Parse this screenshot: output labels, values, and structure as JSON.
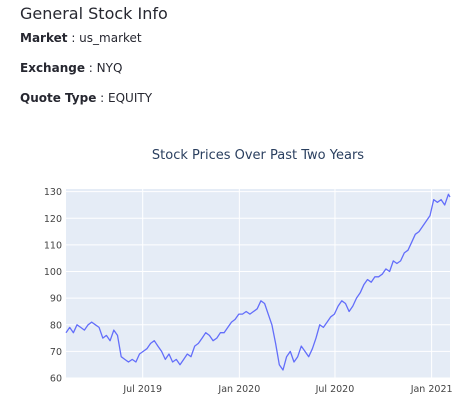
{
  "info": {
    "title": "General Stock Info",
    "rows": [
      {
        "label": "Market",
        "value": "us_market"
      },
      {
        "label": "Exchange",
        "value": "NYQ"
      },
      {
        "label": "Quote Type",
        "value": "EQUITY"
      }
    ],
    "separator": " : "
  },
  "chart_data": {
    "type": "line",
    "title": "Stock Prices Over Past Two Years",
    "xlabel": "",
    "ylabel": "",
    "ylim": [
      60,
      131
    ],
    "y_ticks": [
      60,
      70,
      80,
      90,
      100,
      110,
      120,
      130
    ],
    "x_range": [
      "2019-02-05",
      "2021-02-05"
    ],
    "x_ticks": [
      {
        "date": "2019-07-01",
        "label": "Jul 2019"
      },
      {
        "date": "2020-01-01",
        "label": "Jan 2020"
      },
      {
        "date": "2020-07-01",
        "label": "Jul 2020"
      },
      {
        "date": "2021-01-01",
        "label": "Jan 2021"
      }
    ],
    "grid": true,
    "legend": "none",
    "series": [
      {
        "color": "#636efa",
        "points": [
          [
            "2019-02-05",
            77
          ],
          [
            "2019-02-12",
            79
          ],
          [
            "2019-02-19",
            77
          ],
          [
            "2019-02-26",
            80
          ],
          [
            "2019-03-05",
            79
          ],
          [
            "2019-03-12",
            78
          ],
          [
            "2019-03-19",
            80
          ],
          [
            "2019-03-26",
            81
          ],
          [
            "2019-04-02",
            80
          ],
          [
            "2019-04-09",
            79
          ],
          [
            "2019-04-16",
            75
          ],
          [
            "2019-04-23",
            76
          ],
          [
            "2019-04-30",
            74
          ],
          [
            "2019-05-07",
            78
          ],
          [
            "2019-05-14",
            76
          ],
          [
            "2019-05-21",
            68
          ],
          [
            "2019-05-28",
            67
          ],
          [
            "2019-06-04",
            66
          ],
          [
            "2019-06-11",
            67
          ],
          [
            "2019-06-18",
            66
          ],
          [
            "2019-06-25",
            69
          ],
          [
            "2019-07-02",
            70
          ],
          [
            "2019-07-09",
            71
          ],
          [
            "2019-07-16",
            73
          ],
          [
            "2019-07-23",
            74
          ],
          [
            "2019-07-30",
            72
          ],
          [
            "2019-08-06",
            70
          ],
          [
            "2019-08-13",
            67
          ],
          [
            "2019-08-20",
            69
          ],
          [
            "2019-08-27",
            66
          ],
          [
            "2019-09-03",
            67
          ],
          [
            "2019-09-10",
            65
          ],
          [
            "2019-09-17",
            67
          ],
          [
            "2019-09-24",
            69
          ],
          [
            "2019-10-01",
            68
          ],
          [
            "2019-10-08",
            72
          ],
          [
            "2019-10-15",
            73
          ],
          [
            "2019-10-22",
            75
          ],
          [
            "2019-10-29",
            77
          ],
          [
            "2019-11-05",
            76
          ],
          [
            "2019-11-12",
            74
          ],
          [
            "2019-11-19",
            75
          ],
          [
            "2019-11-26",
            77
          ],
          [
            "2019-12-03",
            77
          ],
          [
            "2019-12-10",
            79
          ],
          [
            "2019-12-17",
            81
          ],
          [
            "2019-12-24",
            82
          ],
          [
            "2019-12-31",
            84
          ],
          [
            "2020-01-07",
            84
          ],
          [
            "2020-01-14",
            85
          ],
          [
            "2020-01-21",
            84
          ],
          [
            "2020-01-28",
            85
          ],
          [
            "2020-02-04",
            86
          ],
          [
            "2020-02-11",
            89
          ],
          [
            "2020-02-18",
            88
          ],
          [
            "2020-02-25",
            84
          ],
          [
            "2020-03-03",
            80
          ],
          [
            "2020-03-10",
            73
          ],
          [
            "2020-03-17",
            65
          ],
          [
            "2020-03-24",
            63
          ],
          [
            "2020-03-31",
            68
          ],
          [
            "2020-04-07",
            70
          ],
          [
            "2020-04-14",
            66
          ],
          [
            "2020-04-21",
            68
          ],
          [
            "2020-04-28",
            72
          ],
          [
            "2020-05-05",
            70
          ],
          [
            "2020-05-12",
            68
          ],
          [
            "2020-05-19",
            71
          ],
          [
            "2020-05-26",
            75
          ],
          [
            "2020-06-02",
            80
          ],
          [
            "2020-06-09",
            79
          ],
          [
            "2020-06-16",
            81
          ],
          [
            "2020-06-23",
            83
          ],
          [
            "2020-06-30",
            84
          ],
          [
            "2020-07-07",
            87
          ],
          [
            "2020-07-14",
            89
          ],
          [
            "2020-07-21",
            88
          ],
          [
            "2020-07-28",
            85
          ],
          [
            "2020-08-04",
            87
          ],
          [
            "2020-08-11",
            90
          ],
          [
            "2020-08-18",
            92
          ],
          [
            "2020-08-25",
            95
          ],
          [
            "2020-09-01",
            97
          ],
          [
            "2020-09-08",
            96
          ],
          [
            "2020-09-15",
            98
          ],
          [
            "2020-09-22",
            98
          ],
          [
            "2020-09-29",
            99
          ],
          [
            "2020-10-06",
            101
          ],
          [
            "2020-10-13",
            100
          ],
          [
            "2020-10-20",
            104
          ],
          [
            "2020-10-27",
            103
          ],
          [
            "2020-11-03",
            104
          ],
          [
            "2020-11-10",
            107
          ],
          [
            "2020-11-17",
            108
          ],
          [
            "2020-11-24",
            111
          ],
          [
            "2020-12-01",
            114
          ],
          [
            "2020-12-08",
            115
          ],
          [
            "2020-12-15",
            117
          ],
          [
            "2020-12-22",
            119
          ],
          [
            "2020-12-29",
            121
          ],
          [
            "2021-01-05",
            127
          ],
          [
            "2021-01-12",
            126
          ],
          [
            "2021-01-19",
            127
          ],
          [
            "2021-01-26",
            125
          ],
          [
            "2021-02-02",
            129
          ],
          [
            "2021-02-05",
            128
          ]
        ]
      }
    ]
  }
}
